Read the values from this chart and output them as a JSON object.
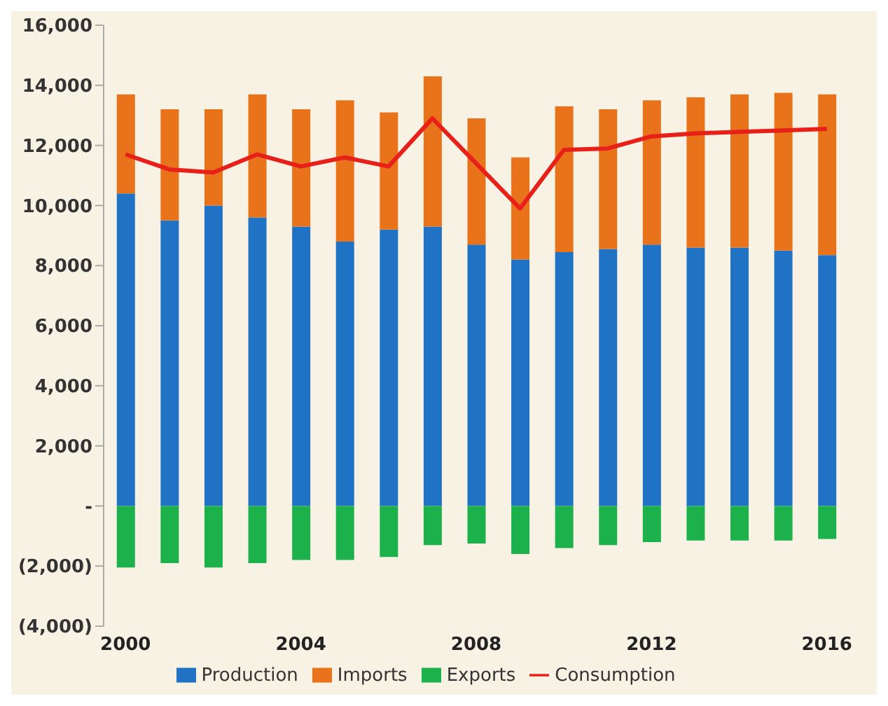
{
  "chart_data": {
    "type": "bar",
    "stacked": true,
    "categories": [
      "2000",
      null,
      null,
      null,
      "2004",
      null,
      null,
      null,
      "2008",
      null,
      null,
      null,
      "2012",
      null,
      null,
      null,
      "2016"
    ],
    "series": [
      {
        "name": "Production",
        "color": "#1f72c4",
        "values": [
          10400,
          9500,
          10000,
          9600,
          9300,
          8800,
          9200,
          9300,
          8700,
          8200,
          8450,
          8550,
          8700,
          8600,
          8600,
          8500,
          8350
        ]
      },
      {
        "name": "Imports",
        "color": "#e8731a",
        "values": [
          3300,
          3700,
          3200,
          4100,
          3900,
          4700,
          3900,
          5000,
          4200,
          3400,
          4850,
          4650,
          4800,
          5000,
          5100,
          5250,
          5350
        ]
      },
      {
        "name": "Exports",
        "color": "#1db14b",
        "values": [
          -2050,
          -1900,
          -2050,
          -1900,
          -1800,
          -1800,
          -1700,
          -1300,
          -1250,
          -1600,
          -1400,
          -1300,
          -1200,
          -1150,
          -1150,
          -1150,
          -1100
        ]
      },
      {
        "name": "Consumption",
        "type": "line",
        "color": "#e8201a",
        "values": [
          11700,
          11200,
          11100,
          11700,
          11300,
          11600,
          11300,
          12900,
          11400,
          9900,
          11850,
          11900,
          12300,
          12400,
          12450,
          12500,
          12550
        ]
      }
    ],
    "ylim": [
      -4000,
      16000
    ],
    "yticks": [
      {
        "value": -4000,
        "label": "(4,000)"
      },
      {
        "value": -2000,
        "label": "(2,000)"
      },
      {
        "value": 0,
        "label": "-"
      },
      {
        "value": 2000,
        "label": "2,000"
      },
      {
        "value": 4000,
        "label": "4,000"
      },
      {
        "value": 6000,
        "label": "6,000"
      },
      {
        "value": 8000,
        "label": "8,000"
      },
      {
        "value": 10000,
        "label": "10,000"
      },
      {
        "value": 12000,
        "label": "12,000"
      },
      {
        "value": 14000,
        "label": "14,000"
      },
      {
        "value": 16000,
        "label": "16,000"
      }
    ],
    "legend": "bottom",
    "marker": "none",
    "line_style": "solid"
  }
}
